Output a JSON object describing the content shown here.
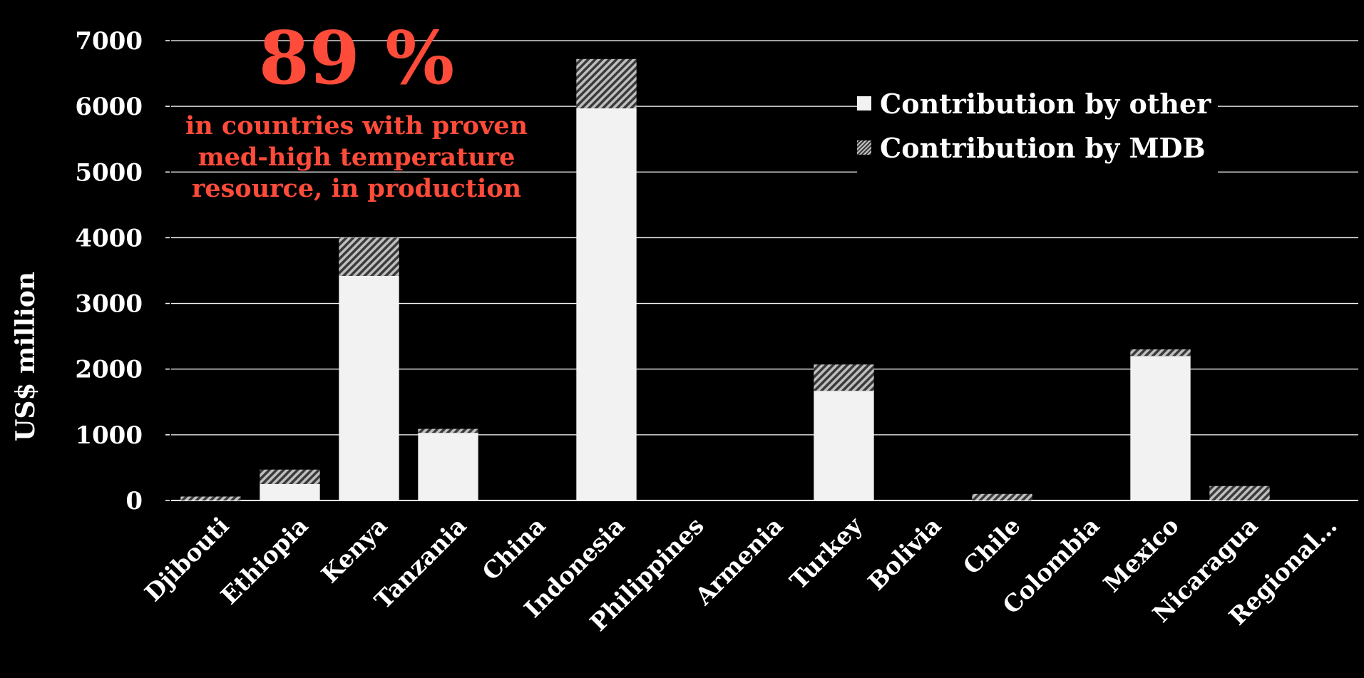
{
  "colors": {
    "background": "#000000",
    "other": "#f2f2f2",
    "mdb_stripe": "#bfbfbf",
    "mdb_gap": "#3a3a3a",
    "callout": "#ff4b3a",
    "text": "#ffffff",
    "grid": "#ffffff"
  },
  "callout": {
    "big": "89 %",
    "line1": "in countries with proven",
    "line2": "med-high temperature",
    "line3": "resource, in production"
  },
  "chart_data": {
    "type": "bar",
    "stacked": true,
    "title": "",
    "xlabel": "",
    "ylabel": "US$ million",
    "ylim": [
      0,
      7000
    ],
    "yticks": [
      0,
      1000,
      2000,
      3000,
      4000,
      5000,
      6000,
      7000
    ],
    "grid": true,
    "legend_position": "top-right",
    "categories": [
      "Djibouti",
      "Ethiopia",
      "Kenya",
      "Tanzania",
      "China",
      "Indonesia",
      "Philippines",
      "Armenia",
      "Turkey",
      "Bolivia",
      "Chile",
      "Colombia",
      "Mexico",
      "Nicaragua",
      "Regional…"
    ],
    "series": [
      {
        "name": "Contribution by other",
        "values": [
          0,
          250,
          3420,
          1030,
          0,
          5970,
          0,
          0,
          1670,
          0,
          0,
          0,
          2200,
          0,
          0
        ]
      },
      {
        "name": "Contribution by MDB",
        "values": [
          60,
          220,
          580,
          60,
          0,
          750,
          0,
          0,
          400,
          0,
          100,
          0,
          100,
          220,
          0
        ]
      }
    ]
  }
}
